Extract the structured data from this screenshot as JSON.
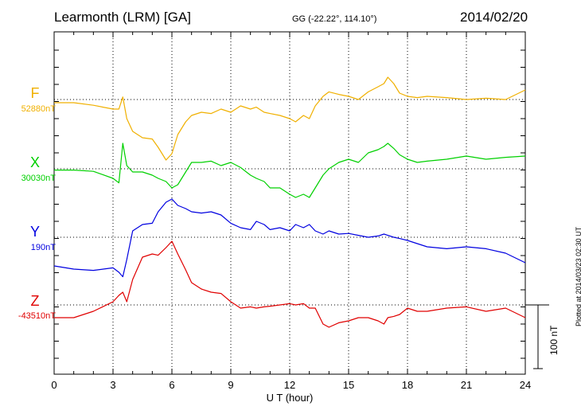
{
  "header": {
    "title": "Learmonth (LRM)  [GA]",
    "coords": "GG (-22.22°, 114.10°)",
    "date": "2014/02/20"
  },
  "footer_note": "Plotted at 2014/03/23 02:30 UT",
  "scale_bar_label": "100 nT",
  "chart_data": {
    "type": "line",
    "title": "",
    "xlabel": "U T (hour)",
    "ylabel": "",
    "xlim": [
      0,
      24
    ],
    "xticks": [
      "0",
      "3",
      "6",
      "9",
      "12",
      "15",
      "18",
      "21",
      "24"
    ],
    "grid": true,
    "scale_bar_nT": 100,
    "series": [
      {
        "name": "F",
        "baseline_label": "52880nT",
        "color": "#f0b000",
        "x": [
          0,
          1,
          2,
          3,
          3.3,
          3.5,
          3.7,
          4,
          4.5,
          5,
          5.3,
          5.7,
          6,
          6.3,
          6.7,
          7,
          7.5,
          8,
          8.5,
          9,
          9.5,
          10,
          10.3,
          10.7,
          11,
          11.5,
          12,
          12.3,
          12.7,
          13,
          13.3,
          13.7,
          14,
          14.5,
          15,
          15.5,
          16,
          16.5,
          16.8,
          17,
          17.3,
          17.6,
          18,
          18.5,
          19,
          20,
          21,
          22,
          23,
          24
        ],
        "y": [
          -5,
          -5,
          -9,
          -15,
          -15,
          4,
          -30,
          -50,
          -60,
          -62,
          -75,
          -95,
          -85,
          -55,
          -35,
          -25,
          -20,
          -22,
          -15,
          -20,
          -10,
          -15,
          -12,
          -20,
          -22,
          -25,
          -30,
          -35,
          -25,
          -30,
          -10,
          5,
          12,
          8,
          5,
          0,
          12,
          20,
          25,
          35,
          25,
          10,
          5,
          3,
          5,
          3,
          0,
          2,
          0,
          15
        ]
      },
      {
        "name": "X",
        "baseline_label": "30030nT",
        "color": "#00d000",
        "x": [
          0,
          1,
          2,
          3,
          3.3,
          3.5,
          3.7,
          4,
          4.5,
          5,
          5.3,
          5.7,
          6,
          6.3,
          6.7,
          7,
          7.5,
          8,
          8.5,
          9,
          9.5,
          10,
          10.3,
          10.7,
          11,
          11.5,
          12,
          12.3,
          12.7,
          13,
          13.3,
          13.7,
          14,
          14.5,
          15,
          15.5,
          16,
          16.5,
          16.8,
          17,
          17.3,
          17.6,
          18,
          18.5,
          19,
          20,
          21,
          22,
          23,
          24
        ],
        "y": [
          -2,
          -2,
          -4,
          -15,
          -22,
          40,
          5,
          -5,
          -5,
          -10,
          -15,
          -20,
          -30,
          -25,
          -5,
          10,
          10,
          12,
          5,
          10,
          2,
          -10,
          -15,
          -20,
          -30,
          -30,
          -40,
          -45,
          -40,
          -45,
          -30,
          -10,
          0,
          10,
          15,
          10,
          25,
          30,
          35,
          40,
          32,
          22,
          15,
          10,
          12,
          15,
          20,
          15,
          18,
          20
        ]
      },
      {
        "name": "Y",
        "baseline_label": "190nT",
        "color": "#0000e0",
        "x": [
          0,
          1,
          2,
          3,
          3.3,
          3.5,
          3.7,
          4,
          4.5,
          5,
          5.3,
          5.7,
          6,
          6.3,
          6.7,
          7,
          7.5,
          8,
          8.5,
          9,
          9.5,
          10,
          10.3,
          10.7,
          11,
          11.5,
          12,
          12.3,
          12.7,
          13,
          13.3,
          13.7,
          14,
          14.5,
          15,
          15.5,
          16,
          16.5,
          16.8,
          17,
          17.3,
          17.6,
          18,
          18.5,
          19,
          20,
          21,
          22,
          23,
          24
        ],
        "y": [
          -45,
          -50,
          -52,
          -48,
          -55,
          -62,
          -35,
          10,
          20,
          22,
          40,
          55,
          60,
          50,
          45,
          40,
          38,
          40,
          35,
          22,
          15,
          12,
          25,
          20,
          12,
          15,
          10,
          20,
          15,
          20,
          10,
          5,
          10,
          5,
          6,
          3,
          0,
          2,
          5,
          3,
          0,
          -2,
          -5,
          -10,
          -15,
          -18,
          -15,
          -18,
          -25,
          -40
        ]
      },
      {
        "name": "Z",
        "baseline_label": "-43510nT",
        "color": "#e00000",
        "x": [
          0,
          1,
          2,
          3,
          3.3,
          3.5,
          3.7,
          4,
          4.5,
          5,
          5.3,
          5.7,
          6,
          6.3,
          6.7,
          7,
          7.5,
          8,
          8.5,
          9,
          9.5,
          10,
          10.3,
          10.7,
          11,
          11.5,
          12,
          12.3,
          12.7,
          13,
          13.3,
          13.7,
          14,
          14.5,
          15,
          15.5,
          16,
          16.5,
          16.8,
          17,
          17.3,
          17.6,
          18,
          18.5,
          19,
          20,
          21,
          22,
          23,
          24
        ],
        "y": [
          -20,
          -20,
          -10,
          5,
          15,
          20,
          5,
          40,
          75,
          80,
          78,
          90,
          100,
          80,
          55,
          35,
          25,
          20,
          18,
          5,
          -5,
          -3,
          -5,
          -3,
          -2,
          0,
          2,
          0,
          2,
          -5,
          -5,
          -30,
          -35,
          -28,
          -25,
          -20,
          -20,
          -25,
          -30,
          -20,
          -18,
          -15,
          -5,
          -10,
          -10,
          -5,
          -3,
          -10,
          -5,
          -20
        ]
      }
    ]
  }
}
